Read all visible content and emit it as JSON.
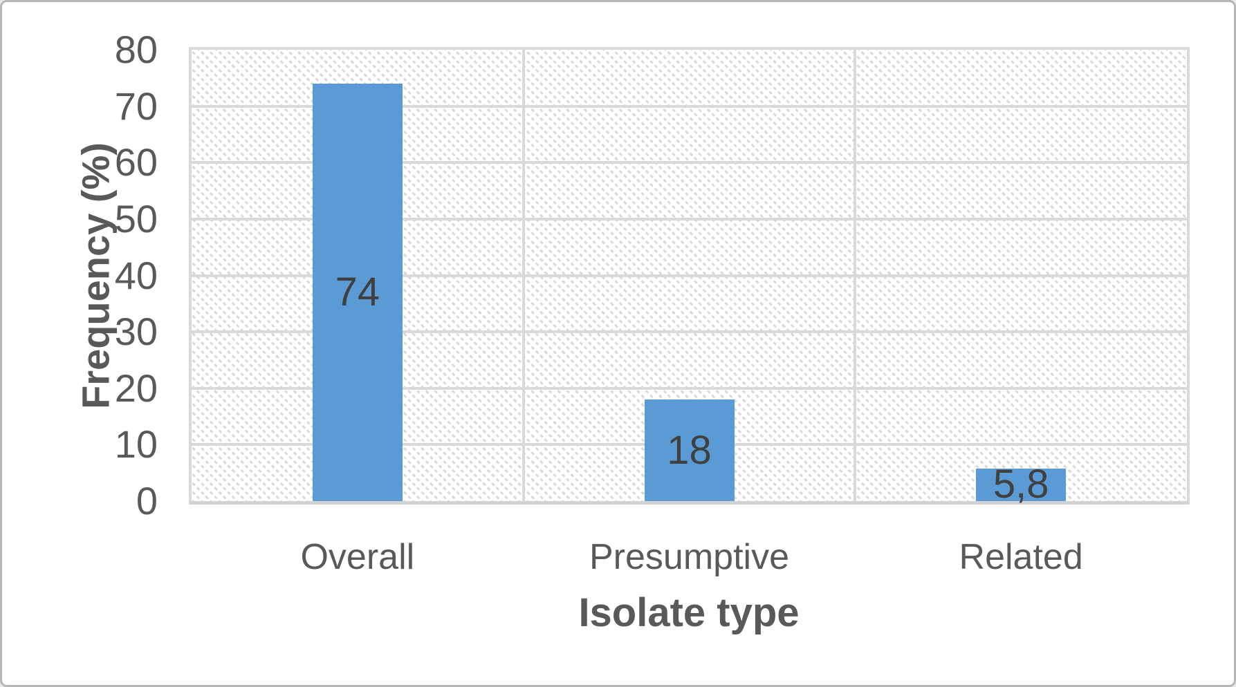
{
  "figure": {
    "description": "Bar chart showing frequency (%) by isolate type",
    "background_color": "#ffffff",
    "border_color": "#b6b6b6"
  },
  "chart_data": {
    "type": "bar",
    "title": "",
    "categories": [
      "Overall",
      "Presumptive",
      "Related"
    ],
    "values": [
      74,
      18,
      5.8
    ],
    "value_labels": [
      "74",
      "18",
      "5,8"
    ],
    "xlabel": "Isolate type",
    "ylabel": "Frequency (%)",
    "ylim": [
      0,
      80
    ],
    "yticks": [
      0,
      10,
      20,
      30,
      40,
      50,
      60,
      70,
      80
    ],
    "grid": {
      "horizontal_major": true,
      "vertical_category_separators": true
    },
    "legend": "none",
    "plot_area_fill": "light diagonal dotted hatch pattern",
    "data_label_position": "center-of-bar",
    "colors": {
      "bar": "#5b9bd5",
      "gridline": "#d9d9d9",
      "hatch": "#d9d9d9",
      "tick_text": "#595959",
      "axis_title_text": "#595959",
      "data_label_text": "#404040"
    }
  }
}
